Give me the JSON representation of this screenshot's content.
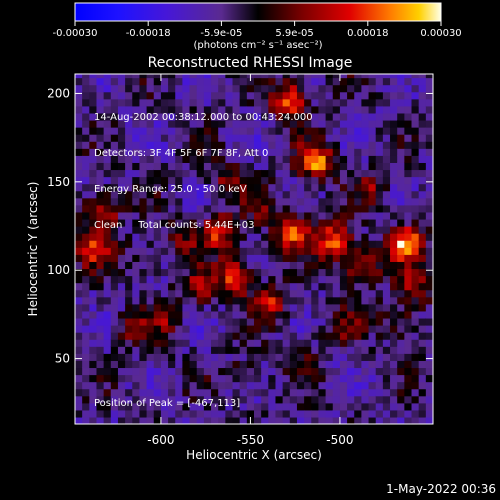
{
  "chart_data": {
    "type": "heatmap",
    "title": "Reconstructed RHESSI Image",
    "xlabel": "Heliocentric X (arcsec)",
    "ylabel": "Heliocentric Y (arcsec)",
    "xlim": [
      -648,
      -448
    ],
    "ylim": [
      13,
      211
    ],
    "x_ticks": [
      -600,
      -550,
      -500
    ],
    "y_ticks": [
      50,
      100,
      150,
      200
    ],
    "colorbar": {
      "range": [
        -0.0003,
        0.0003
      ],
      "tick_labels": [
        "-0.00030",
        "-0.00018",
        "-5.9e-05",
        "5.9e-05",
        "0.00018",
        "0.00030"
      ],
      "unit_line": "(photons cm⁻² s⁻¹ asec⁻²)"
    },
    "peak": {
      "x": -467,
      "y": 113
    },
    "bright_sources": [
      {
        "x": -515,
        "y": 160,
        "value": 0.00028
      },
      {
        "x": -465,
        "y": 113,
        "value": 0.0003
      },
      {
        "x": -528,
        "y": 120,
        "value": 0.00024
      },
      {
        "x": -570,
        "y": 120,
        "value": 0.00022
      },
      {
        "x": -505,
        "y": 115,
        "value": 0.00026
      },
      {
        "x": -530,
        "y": 195,
        "value": 0.00025
      },
      {
        "x": -635,
        "y": 132,
        "value": 0.00022
      },
      {
        "x": -640,
        "y": 110,
        "value": 0.00018
      },
      {
        "x": -560,
        "y": 95,
        "value": 0.00024
      },
      {
        "x": -580,
        "y": 88,
        "value": 0.00015
      },
      {
        "x": -540,
        "y": 80,
        "value": 0.00018
      },
      {
        "x": -490,
        "y": 100,
        "value": 0.0002
      },
      {
        "x": -470,
        "y": 70,
        "value": 0.00012
      },
      {
        "x": -600,
        "y": 70,
        "value": 0.0001
      },
      {
        "x": -500,
        "y": 65,
        "value": 0.0001
      },
      {
        "x": -460,
        "y": 88,
        "value": 0.00015
      },
      {
        "x": -618,
        "y": 65,
        "value": 0.0001
      },
      {
        "x": -565,
        "y": 150,
        "value": 0.00012
      },
      {
        "x": -590,
        "y": 115,
        "value": 0.0001
      },
      {
        "x": -525,
        "y": 50,
        "value": 8e-05
      },
      {
        "x": -555,
        "y": 40,
        "value": 7e-05
      },
      {
        "x": -485,
        "y": 145,
        "value": 0.00012
      },
      {
        "x": -612,
        "y": 105,
        "value": 9e-05
      },
      {
        "x": -545,
        "y": 135,
        "value": 0.0001
      }
    ],
    "info_lines": [
      "14-Aug-2002 00:38:12.000 to 00:43:24.000",
      "Detectors: 3F 4F 5F 6F 7F 8F, Att 0",
      "Energy Range: 25.0 - 50.0 keV",
      "Clean     Total counts: 5.44E+03"
    ],
    "peak_text": "Position of Peak = [-467,113]"
  },
  "footer": {
    "date": "1-May-2022 00:36"
  },
  "colors": {
    "background": "#000000",
    "axis": "#ffffff"
  }
}
